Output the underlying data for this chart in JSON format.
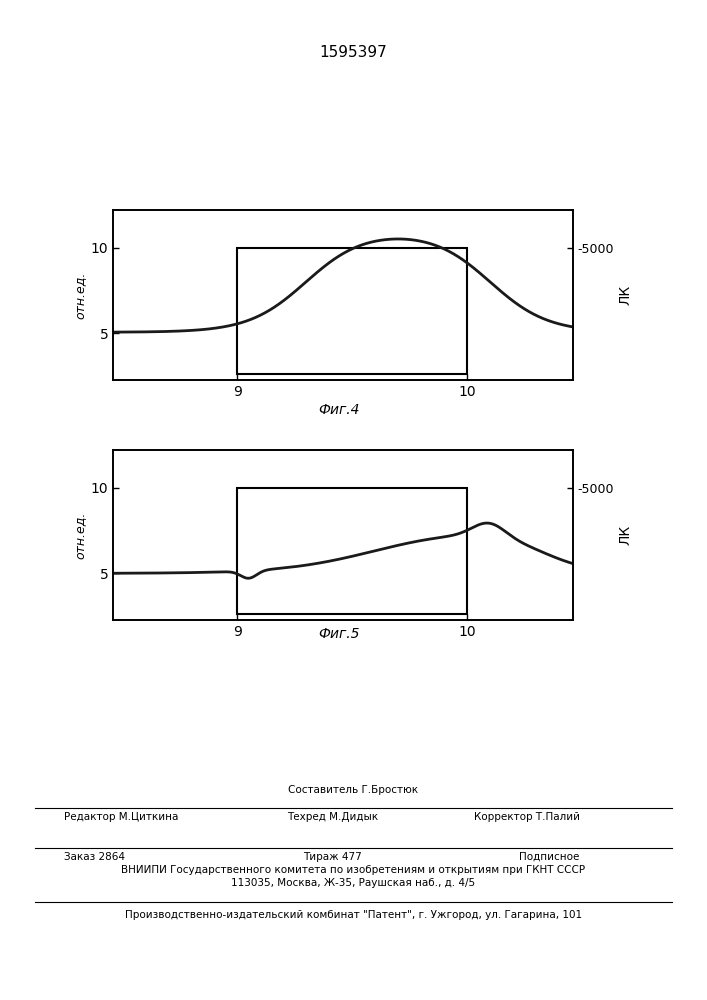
{
  "title": "1595397",
  "fig4_label": "Фиг.4",
  "fig5_label": "Фиг.5",
  "left_ylabel": "отн.ед.",
  "right_ylabel": "ЛК",
  "right_tick_label": "-5000",
  "xtick_9": "9",
  "xtick_10": "10",
  "ytick_5": "5",
  "ytick_10": "10",
  "footer_составитель": "Составитель Г.Бростюк",
  "footer_редактор": "Редактор М.Циткина",
  "footer_техред": "Техред М.Дидык",
  "footer_корректор": "Корректор Т.Палий",
  "footer_заказ": "Заказ 2864",
  "footer_тираж": "Тираж 477",
  "footer_подписное": "Подписное",
  "footer_вниипи": "ВНИИПИ Государственного комитета по изобретениям и открытиям при ГКНТ СССР",
  "footer_адрес": "113035, Москва, Ж-35, Раушская наб., д. 4/5",
  "footer_патент": "Производственно-издательский комбинат \"Патент\", г. Ужгород, ул. Гагарина, 101",
  "line_color": "#1a1a1a"
}
